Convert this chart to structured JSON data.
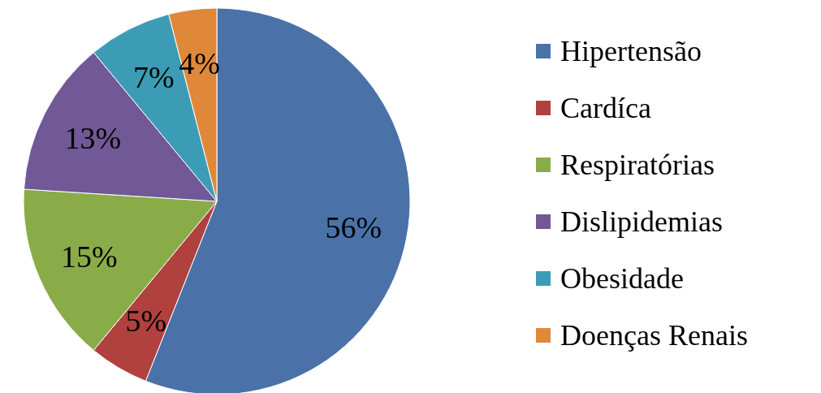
{
  "chart_data": {
    "type": "pie",
    "categories": [
      "Hipertensão",
      "Cardíca",
      "Respiratórias",
      "Dislipidemias",
      "Obesidade",
      "Doenças Renais"
    ],
    "values": [
      56,
      5,
      15,
      13,
      7,
      4
    ],
    "value_labels": [
      "56%",
      "5%",
      "15%",
      "13%",
      "7%",
      "4%"
    ],
    "colors": [
      "#4a72a8",
      "#b0413e",
      "#8aac48",
      "#715896",
      "#3d9cb5",
      "#e0883a"
    ],
    "legend": "right"
  }
}
